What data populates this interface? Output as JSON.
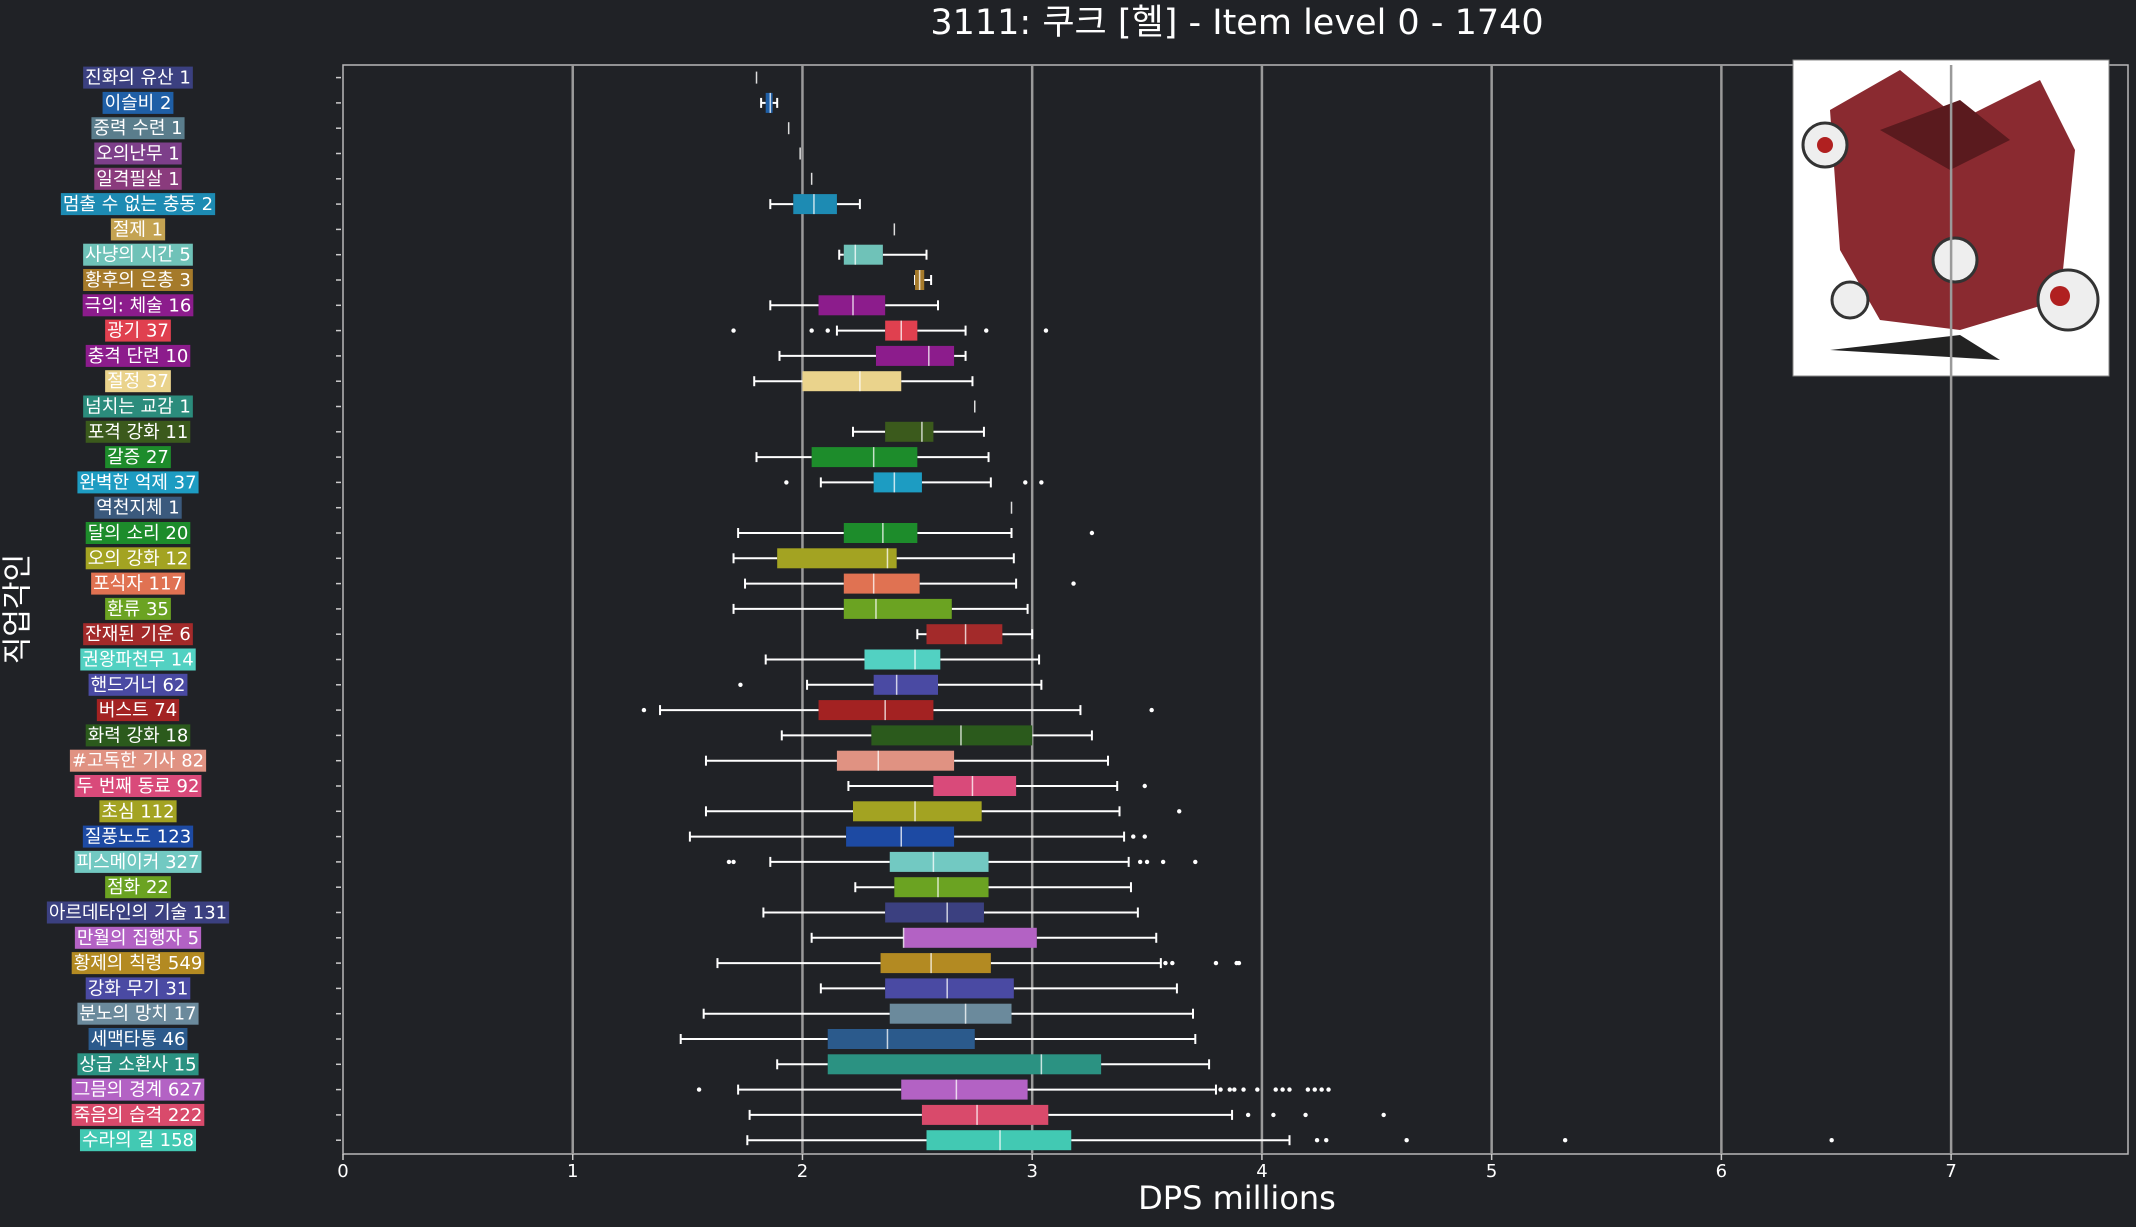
{
  "chart_data": {
    "type": "box",
    "title": "3111: 쿠크 [헬] - Item level 0 - 1740",
    "xlabel": "DPS millions",
    "ylabel": "직업각인",
    "xlim": [
      0,
      7.77
    ],
    "xticks": [
      0,
      1,
      2,
      3,
      4,
      5,
      6,
      7
    ],
    "grid": true,
    "categories": [
      "진화의 유산 1",
      "이슬비 2",
      "중력 수련 1",
      "오의난무 1",
      "일격필살 1",
      "멈출 수 없는 충동 2",
      "절제 1",
      "사냥의 시간 5",
      "황후의 은총 3",
      "극의: 체술 16",
      "광기 37",
      "충격 단련 10",
      "절정 37",
      "넘치는 교감 1",
      "포격 강화 11",
      "갈증 27",
      "완벽한 억제 37",
      "역천지체 1",
      "달의 소리 20",
      "오의 강화 12",
      "포식자 117",
      "환류 35",
      "잔재된 기운 6",
      "권왕파천무 14",
      "핸드거너 62",
      "버스트 74",
      "화력 강화 18",
      "#고독한 기사 82",
      "두 번째 동료 92",
      "초심 112",
      "질풍노도 123",
      "피스메이커 327",
      "점화 22",
      "아르데타인의 기술 131",
      "만월의 집행자 5",
      "황제의 칙령 549",
      "강화 무기 31",
      "분노의 망치 17",
      "세맥타통 46",
      "상급 소환사 15",
      "그믐의 경계 627",
      "죽음의 습격 222",
      "수라의 길 158"
    ],
    "colors": [
      "#3b4080",
      "#1f5fa6",
      "#5a7d8c",
      "#7d3f8a",
      "#8a3b7d",
      "#1d8bb3",
      "#c4a352",
      "#6fc2b8",
      "#a57a2a",
      "#8c1c8c",
      "#e0404f",
      "#8c1c8c",
      "#ead38c",
      "#2b8c7c",
      "#3b5a1c",
      "#1d8c2b",
      "#1d9cc2",
      "#3b5a7d",
      "#1d8c2b",
      "#a3a322",
      "#e07252",
      "#6ba322",
      "#a32a2a",
      "#52d1c2",
      "#4a4aa3",
      "#a32222",
      "#2b5a1c",
      "#e09282",
      "#d94a7a",
      "#a3a322",
      "#1d4aa3",
      "#72c9c2",
      "#6ba322",
      "#3b4080",
      "#b362c4",
      "#b38a22",
      "#4a4aa3",
      "#6b8a9c",
      "#2b5a8c",
      "#2b9282",
      "#b362c4",
      "#d94a6b",
      "#42c9b3"
    ],
    "boxes": [
      {
        "med": 1.8
      },
      {
        "low": 1.82,
        "q1": 1.84,
        "med": 1.86,
        "q3": 1.87,
        "high": 1.89
      },
      {
        "med": 1.94
      },
      {
        "med": 1.99
      },
      {
        "med": 2.04
      },
      {
        "low": 1.86,
        "q1": 1.96,
        "med": 2.05,
        "q3": 2.15,
        "high": 2.25
      },
      {
        "med": 2.4
      },
      {
        "low": 2.16,
        "q1": 2.18,
        "med": 2.23,
        "q3": 2.35,
        "high": 2.54
      },
      {
        "low": 2.49,
        "q1": 2.49,
        "med": 2.51,
        "q3": 2.53,
        "high": 2.56
      },
      {
        "low": 1.86,
        "q1": 2.07,
        "med": 2.22,
        "q3": 2.36,
        "high": 2.59
      },
      {
        "low": 2.15,
        "q1": 2.36,
        "med": 2.43,
        "q3": 2.5,
        "high": 2.71,
        "out": [
          1.7,
          2.04,
          2.11,
          2.8,
          3.06
        ]
      },
      {
        "low": 1.9,
        "q1": 2.32,
        "med": 2.55,
        "q3": 2.66,
        "high": 2.71
      },
      {
        "low": 1.79,
        "q1": 2.0,
        "med": 2.25,
        "q3": 2.43,
        "high": 2.74
      },
      {
        "med": 2.75
      },
      {
        "low": 2.22,
        "q1": 2.36,
        "med": 2.52,
        "q3": 2.57,
        "high": 2.79
      },
      {
        "low": 1.8,
        "q1": 2.04,
        "med": 2.31,
        "q3": 2.5,
        "high": 2.81
      },
      {
        "low": 2.08,
        "q1": 2.31,
        "med": 2.4,
        "q3": 2.52,
        "high": 2.82,
        "out": [
          1.93,
          2.97,
          3.04
        ]
      },
      {
        "med": 2.91
      },
      {
        "low": 1.72,
        "q1": 2.18,
        "med": 2.35,
        "q3": 2.5,
        "high": 2.91,
        "out": [
          3.26
        ]
      },
      {
        "low": 1.7,
        "q1": 1.89,
        "med": 2.37,
        "q3": 2.41,
        "high": 2.92
      },
      {
        "low": 1.75,
        "q1": 2.18,
        "med": 2.31,
        "q3": 2.51,
        "high": 2.93,
        "out": [
          3.18
        ]
      },
      {
        "low": 1.7,
        "q1": 2.18,
        "med": 2.32,
        "q3": 2.65,
        "high": 2.98
      },
      {
        "low": 2.5,
        "q1": 2.54,
        "med": 2.71,
        "q3": 2.87,
        "high": 3.0
      },
      {
        "low": 1.84,
        "q1": 2.27,
        "med": 2.49,
        "q3": 2.6,
        "high": 3.03
      },
      {
        "low": 2.02,
        "q1": 2.31,
        "med": 2.41,
        "q3": 2.59,
        "high": 3.04,
        "out": [
          1.73
        ]
      },
      {
        "low": 1.38,
        "q1": 2.07,
        "med": 2.36,
        "q3": 2.57,
        "high": 3.21,
        "out": [
          1.31,
          3.52
        ]
      },
      {
        "low": 1.91,
        "q1": 2.3,
        "med": 2.69,
        "q3": 3.0,
        "high": 3.26
      },
      {
        "low": 1.58,
        "q1": 2.15,
        "med": 2.33,
        "q3": 2.66,
        "high": 3.33
      },
      {
        "low": 2.2,
        "q1": 2.57,
        "med": 2.74,
        "q3": 2.93,
        "high": 3.37,
        "out": [
          3.49
        ]
      },
      {
        "low": 1.58,
        "q1": 2.22,
        "med": 2.49,
        "q3": 2.78,
        "high": 3.38,
        "out": [
          3.64
        ]
      },
      {
        "low": 1.51,
        "q1": 2.19,
        "med": 2.43,
        "q3": 2.66,
        "high": 3.4,
        "out": [
          3.44,
          3.49
        ]
      },
      {
        "low": 1.86,
        "q1": 2.38,
        "med": 2.57,
        "q3": 2.81,
        "high": 3.42,
        "out": [
          1.68,
          1.7,
          3.47,
          3.5,
          3.57,
          3.71
        ]
      },
      {
        "low": 2.23,
        "q1": 2.4,
        "med": 2.59,
        "q3": 2.81,
        "high": 3.43
      },
      {
        "low": 1.83,
        "q1": 2.36,
        "med": 2.63,
        "q3": 2.79,
        "high": 3.46
      },
      {
        "low": 2.04,
        "q1": 2.44,
        "med": 2.44,
        "q3": 3.02,
        "high": 3.54
      },
      {
        "low": 1.63,
        "q1": 2.34,
        "med": 2.56,
        "q3": 2.82,
        "high": 3.56,
        "out": [
          3.58,
          3.61,
          3.8,
          3.89,
          3.9
        ]
      },
      {
        "low": 2.08,
        "q1": 2.36,
        "med": 2.63,
        "q3": 2.92,
        "high": 3.63
      },
      {
        "low": 1.57,
        "q1": 2.38,
        "med": 2.71,
        "q3": 2.91,
        "high": 3.7
      },
      {
        "low": 1.47,
        "q1": 2.11,
        "med": 2.37,
        "q3": 2.75,
        "high": 3.71
      },
      {
        "low": 1.89,
        "q1": 2.11,
        "med": 3.04,
        "q3": 3.3,
        "high": 3.77
      },
      {
        "low": 1.72,
        "q1": 2.43,
        "med": 2.67,
        "q3": 2.98,
        "high": 3.8,
        "out": [
          1.55,
          3.82,
          3.86,
          3.88,
          3.92,
          3.98,
          4.06,
          4.09,
          4.12,
          4.2,
          4.23,
          4.26,
          4.29
        ]
      },
      {
        "low": 1.77,
        "q1": 2.52,
        "med": 2.76,
        "q3": 3.07,
        "high": 3.87,
        "out": [
          3.94,
          4.05,
          4.19,
          4.53
        ]
      },
      {
        "low": 1.76,
        "q1": 2.54,
        "med": 2.86,
        "q3": 3.17,
        "high": 4.12,
        "out": [
          4.24,
          4.28,
          4.63,
          5.32,
          6.48
        ]
      }
    ]
  }
}
